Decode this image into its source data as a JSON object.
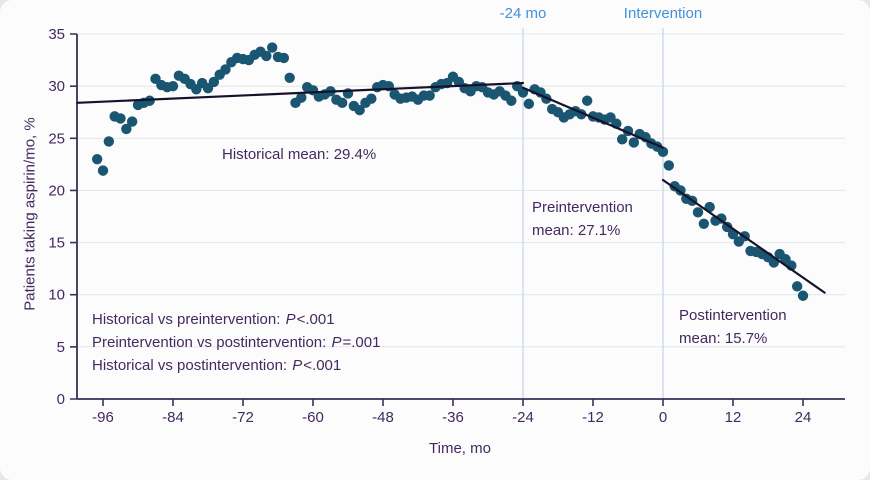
{
  "figure": {
    "reference_labels": {
      "neg24": "-24 mo",
      "intervention": "Intervention"
    },
    "annotations": {
      "historical_mean": "Historical mean: 29.4%",
      "preintervention_line1": "Preintervention",
      "preintervention_line2": "mean: 27.1%",
      "postintervention_line1": "Postintervention",
      "postintervention_line2": "mean: 15.7%"
    },
    "pvalues": [
      {
        "label": "Historical vs preintervention: ",
        "p": "P",
        "value": "<.001"
      },
      {
        "label": "Preintervention vs postintervention: ",
        "p": "P",
        "value": "=.001"
      },
      {
        "label": "Historical vs postintervention: ",
        "p": "P",
        "value": "<.001"
      }
    ],
    "colors": {
      "point": "#1a5572",
      "trend_line": "#17122b",
      "axis": "#3b2f55",
      "text": "#432a5e",
      "reference_label": "#4392d6",
      "reference_line": "#ccd9e8",
      "gridline": "#e4e7eb",
      "background": "#fcfcfd"
    }
  },
  "chart_data": {
    "type": "scatter",
    "title": "",
    "xlabel": "Time, mo",
    "ylabel": "Patients taking aspirin/mo, %",
    "x_ticks": [
      -96,
      -84,
      -72,
      -60,
      -48,
      -36,
      -24,
      -12,
      0,
      12,
      24
    ],
    "y_ticks": [
      0,
      5,
      10,
      15,
      20,
      25,
      30,
      35
    ],
    "x_domain": [
      -100.4,
      31.2
    ],
    "ylim": [
      0,
      35
    ],
    "grid": "horizontal",
    "legend": "none",
    "reference_lines": [
      {
        "x": -24,
        "label": "-24 mo"
      },
      {
        "x": 0,
        "label": "Intervention"
      }
    ],
    "means": {
      "historical": 29.4,
      "preintervention": 27.1,
      "postintervention": 15.7
    },
    "trend_segments": [
      {
        "name": "historical",
        "x1": -100.4,
        "y1": 28.4,
        "x2": -24,
        "y2": 30.3
      },
      {
        "name": "preintervention",
        "x1": -24,
        "y1": 29.85,
        "x2": 0,
        "y2": 24.1
      },
      {
        "name": "postintervention",
        "x1": 0,
        "y1": 21.0,
        "x2": 27.7,
        "y2": 10.2
      }
    ],
    "points": [
      [
        -97,
        23.0
      ],
      [
        -96,
        21.9
      ],
      [
        -95,
        24.7
      ],
      [
        -94,
        27.1
      ],
      [
        -93,
        26.9
      ],
      [
        -92,
        25.9
      ],
      [
        -91,
        26.6
      ],
      [
        -90,
        28.2
      ],
      [
        -89,
        28.4
      ],
      [
        -88,
        28.6
      ],
      [
        -87,
        30.7
      ],
      [
        -86,
        30.1
      ],
      [
        -85,
        29.9
      ],
      [
        -84,
        30.0
      ],
      [
        -83,
        31.0
      ],
      [
        -82,
        30.7
      ],
      [
        -81,
        30.2
      ],
      [
        -80,
        29.7
      ],
      [
        -79,
        30.3
      ],
      [
        -78,
        29.8
      ],
      [
        -77,
        30.4
      ],
      [
        -76,
        31.1
      ],
      [
        -75,
        31.6
      ],
      [
        -74,
        32.3
      ],
      [
        -73,
        32.7
      ],
      [
        -72,
        32.6
      ],
      [
        -71,
        32.5
      ],
      [
        -70,
        33.0
      ],
      [
        -69,
        33.3
      ],
      [
        -68,
        32.9
      ],
      [
        -67,
        33.7
      ],
      [
        -66,
        32.8
      ],
      [
        -65,
        32.7
      ],
      [
        -64,
        30.8
      ],
      [
        -63,
        28.4
      ],
      [
        -62,
        28.9
      ],
      [
        -61,
        29.9
      ],
      [
        -60,
        29.6
      ],
      [
        -59,
        29.0
      ],
      [
        -58,
        29.2
      ],
      [
        -57,
        29.5
      ],
      [
        -56,
        28.7
      ],
      [
        -55,
        28.4
      ],
      [
        -54,
        29.3
      ],
      [
        -53,
        28.1
      ],
      [
        -52,
        27.7
      ],
      [
        -51,
        28.4
      ],
      [
        -50,
        28.8
      ],
      [
        -49,
        29.9
      ],
      [
        -48,
        30.1
      ],
      [
        -47,
        30.0
      ],
      [
        -46,
        29.2
      ],
      [
        -45,
        28.8
      ],
      [
        -44,
        28.9
      ],
      [
        -43,
        29.0
      ],
      [
        -42,
        28.7
      ],
      [
        -41,
        29.1
      ],
      [
        -40,
        29.1
      ],
      [
        -39,
        29.9
      ],
      [
        -38,
        30.2
      ],
      [
        -37,
        30.3
      ],
      [
        -36,
        30.9
      ],
      [
        -35,
        30.4
      ],
      [
        -34,
        29.8
      ],
      [
        -33,
        29.5
      ],
      [
        -32,
        30.0
      ],
      [
        -31,
        29.9
      ],
      [
        -30,
        29.4
      ],
      [
        -29,
        29.2
      ],
      [
        -28,
        29.5
      ],
      [
        -27,
        29.1
      ],
      [
        -26,
        28.6
      ],
      [
        -25,
        30.0
      ],
      [
        -24,
        29.4
      ],
      [
        -23,
        28.3
      ],
      [
        -22,
        29.7
      ],
      [
        -21,
        29.4
      ],
      [
        -20,
        28.8
      ],
      [
        -19,
        27.8
      ],
      [
        -18,
        27.5
      ],
      [
        -17,
        27.0
      ],
      [
        -16,
        27.3
      ],
      [
        -15,
        27.6
      ],
      [
        -14,
        27.3
      ],
      [
        -13,
        28.6
      ],
      [
        -12,
        27.1
      ],
      [
        -11,
        27.0
      ],
      [
        -10,
        26.8
      ],
      [
        -9,
        27.0
      ],
      [
        -8,
        26.4
      ],
      [
        -7,
        24.9
      ],
      [
        -6,
        25.7
      ],
      [
        -5,
        24.6
      ],
      [
        -4,
        25.4
      ],
      [
        -3,
        25.1
      ],
      [
        -2,
        24.5
      ],
      [
        -1,
        24.2
      ],
      [
        0,
        23.7
      ],
      [
        1,
        22.4
      ],
      [
        2,
        20.4
      ],
      [
        3,
        20.0
      ],
      [
        4,
        19.2
      ],
      [
        5,
        19.0
      ],
      [
        6,
        17.9
      ],
      [
        7,
        16.8
      ],
      [
        8,
        18.4
      ],
      [
        9,
        17.1
      ],
      [
        10,
        17.3
      ],
      [
        11,
        16.5
      ],
      [
        12,
        15.8
      ],
      [
        13,
        15.1
      ],
      [
        14,
        15.6
      ],
      [
        15,
        14.2
      ],
      [
        16,
        14.1
      ],
      [
        17,
        13.9
      ],
      [
        18,
        13.6
      ],
      [
        19,
        13.1
      ],
      [
        20,
        13.9
      ],
      [
        21,
        13.4
      ],
      [
        22,
        12.8
      ],
      [
        23,
        10.8
      ],
      [
        24,
        9.9
      ]
    ]
  }
}
